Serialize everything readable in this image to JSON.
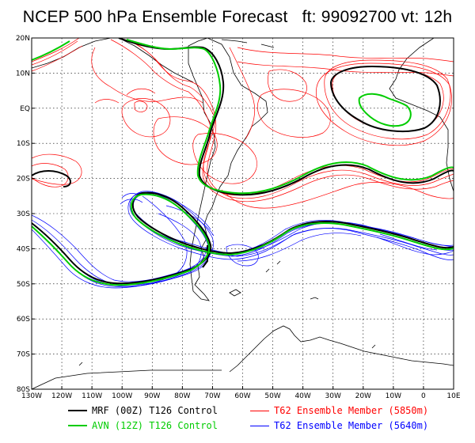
{
  "title": "NCEP 500 hPa Ensemble Forecast   ft: 99092700 vt: 12h",
  "lat_labels": [
    "20N",
    "10N",
    "EQ",
    "10S",
    "20S",
    "30S",
    "40S",
    "50S",
    "60S",
    "70S",
    "80S"
  ],
  "lon_labels": [
    "130W",
    "120W",
    "110W",
    "100W",
    "90W",
    "80W",
    "70W",
    "60W",
    "50W",
    "40W",
    "30W",
    "20W",
    "10W",
    "0",
    "10E"
  ],
  "legend": {
    "mrf": {
      "label": "MRF (00Z) T126 Control",
      "color": "#000000"
    },
    "avn": {
      "label": "AVN (12Z) T126 Control",
      "color": "#00cc00"
    },
    "ens_5850": {
      "label": "T62 Ensemble Member (5850m)",
      "color": "#ff0000"
    },
    "ens_5640": {
      "label": "T62 Ensemble Member (5640m)",
      "color": "#0000ff"
    }
  },
  "colors": {
    "coast": "#000000",
    "grid": "#000000"
  }
}
